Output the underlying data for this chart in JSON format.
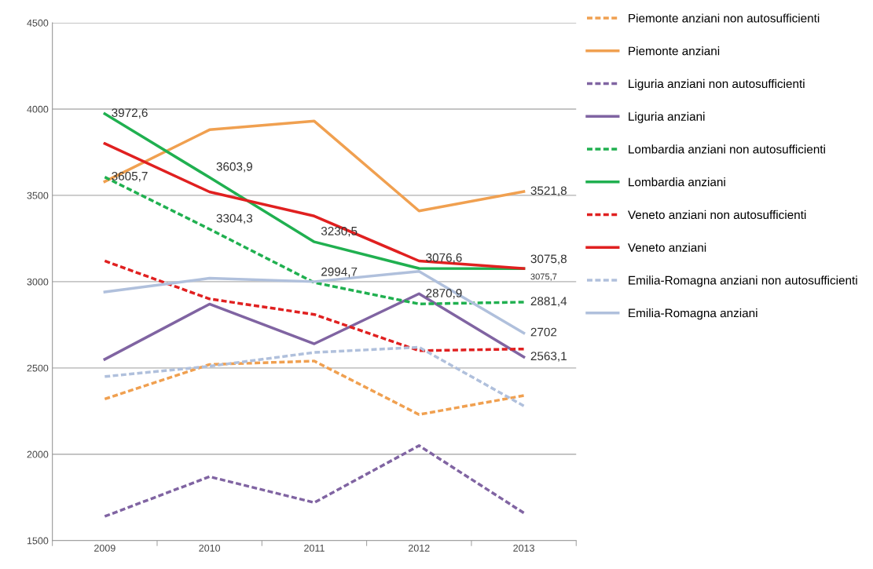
{
  "chart_data": {
    "type": "line",
    "categories": [
      "2009",
      "2010",
      "2011",
      "2012",
      "2013"
    ],
    "ylim": [
      1500,
      4500
    ],
    "yticks": [
      1500,
      2000,
      2500,
      3000,
      3500,
      4000,
      4500
    ],
    "grid": "y",
    "legend": "right",
    "marker": "none",
    "series": [
      {
        "name": "Piemonte anziani non autosufficienti",
        "color": "#f0a050",
        "line_style": "dashed",
        "values": [
          2320,
          2520,
          2540,
          2230,
          2340
        ]
      },
      {
        "name": "Piemonte anziani",
        "color": "#f0a050",
        "line_style": "solid",
        "values": [
          3580,
          3880,
          3930,
          3410,
          3521.8
        ],
        "value_labels": [
          null,
          null,
          null,
          null,
          "3521,8"
        ]
      },
      {
        "name": "Liguria anziani non autosufficienti",
        "color": "#8064a2",
        "line_style": "dashed",
        "values": [
          1640,
          1870,
          1720,
          2050,
          1660
        ]
      },
      {
        "name": "Liguria anziani",
        "color": "#8064a2",
        "line_style": "solid",
        "values": [
          2550,
          2870,
          2640,
          2930,
          2563.1
        ],
        "value_labels": [
          null,
          null,
          null,
          null,
          "2563,1"
        ]
      },
      {
        "name": "Lombardia anziani non autosufficienti",
        "color": "#20b050",
        "line_style": "dashed",
        "values": [
          3605.7,
          3304.3,
          2994.7,
          2870.9,
          2881.4
        ],
        "value_labels": [
          "3605,7",
          "3304,3",
          "2994,7",
          "2870,9",
          "2881,4"
        ]
      },
      {
        "name": "Lombardia anziani",
        "color": "#20b050",
        "line_style": "solid",
        "values": [
          3972.6,
          3603.9,
          3230.5,
          3076.6,
          3075.8
        ],
        "value_labels": [
          "3972,6",
          "3603,9",
          "3230,5",
          "3076,6",
          "3075,8"
        ]
      },
      {
        "name": "Veneto anziani non autosufficienti",
        "color": "#e02020",
        "line_style": "dashed",
        "values": [
          3120,
          2900,
          2810,
          2600,
          2610
        ]
      },
      {
        "name": "Veneto anziani",
        "color": "#e02020",
        "line_style": "solid",
        "values": [
          3800,
          3520,
          3380,
          3120,
          3075.7
        ],
        "value_labels": [
          null,
          null,
          null,
          null,
          "3075,7"
        ]
      },
      {
        "name": "Emilia-Romagna anziani non autosufficienti",
        "color": "#b0c0dc",
        "line_style": "dashed",
        "values": [
          2450,
          2510,
          2590,
          2620,
          2280
        ]
      },
      {
        "name": "Emilia-Romagna anziani",
        "color": "#b0c0dc",
        "line_style": "solid",
        "values": [
          2940,
          3020,
          3000,
          3060,
          2702
        ],
        "value_labels": [
          null,
          null,
          null,
          null,
          "2702"
        ]
      }
    ]
  }
}
